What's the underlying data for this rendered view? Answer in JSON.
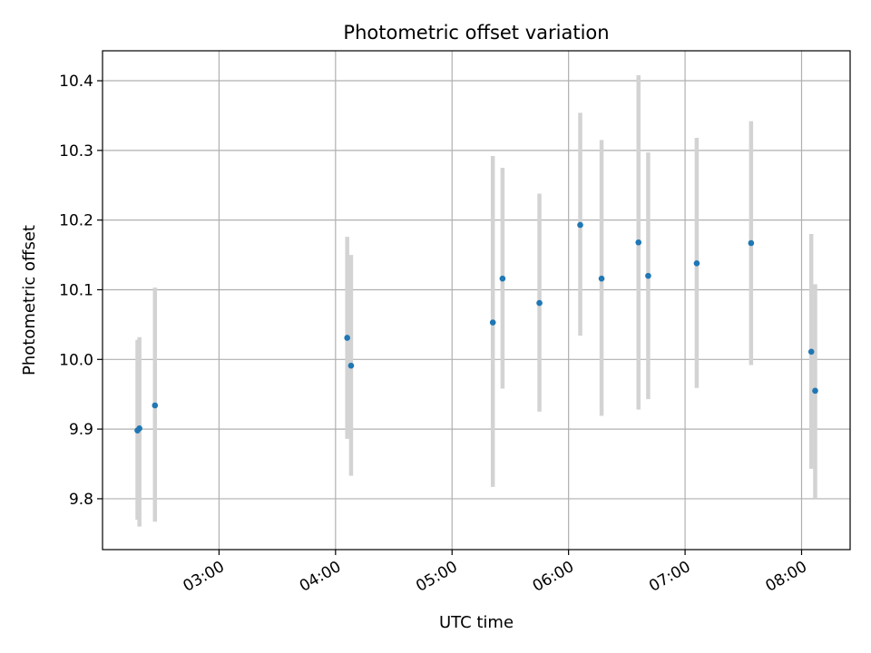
{
  "chart_data": {
    "type": "scatter",
    "title": "Photometric offset variation",
    "xlabel": "UTC time",
    "ylabel": "Photometric offset",
    "xlim": [
      "02:00",
      "08:25"
    ],
    "ylim": [
      9.727,
      10.443
    ],
    "grid": true,
    "error_bars": true,
    "marker_color": "#1f77b4",
    "error_bar_color": "#d3d3d3",
    "x_ticks": [
      "03:00",
      "04:00",
      "05:00",
      "06:00",
      "07:00",
      "08:00"
    ],
    "y_ticks": [
      "9.8",
      "9.9",
      "10.0",
      "10.1",
      "10.2",
      "10.3",
      "10.4"
    ],
    "points": [
      {
        "x": "02:18",
        "y": 9.898,
        "ylow": 9.77,
        "yhigh": 10.028
      },
      {
        "x": "02:19",
        "y": 9.901,
        "ylow": 9.76,
        "yhigh": 10.032
      },
      {
        "x": "02:27",
        "y": 9.934,
        "ylow": 9.767,
        "yhigh": 10.103
      },
      {
        "x": "04:06",
        "y": 10.031,
        "ylow": 9.886,
        "yhigh": 10.176
      },
      {
        "x": "04:08",
        "y": 9.991,
        "ylow": 9.833,
        "yhigh": 10.15
      },
      {
        "x": "05:21",
        "y": 10.053,
        "ylow": 9.817,
        "yhigh": 10.292
      },
      {
        "x": "05:26",
        "y": 10.116,
        "ylow": 9.958,
        "yhigh": 10.275
      },
      {
        "x": "05:45",
        "y": 10.081,
        "ylow": 9.925,
        "yhigh": 10.238
      },
      {
        "x": "06:06",
        "y": 10.193,
        "ylow": 10.034,
        "yhigh": 10.354
      },
      {
        "x": "06:17",
        "y": 10.116,
        "ylow": 9.919,
        "yhigh": 10.315
      },
      {
        "x": "06:36",
        "y": 10.168,
        "ylow": 9.928,
        "yhigh": 10.408
      },
      {
        "x": "06:41",
        "y": 10.12,
        "ylow": 9.943,
        "yhigh": 10.297
      },
      {
        "x": "07:06",
        "y": 10.138,
        "ylow": 9.959,
        "yhigh": 10.318
      },
      {
        "x": "07:34",
        "y": 10.167,
        "ylow": 9.992,
        "yhigh": 10.342
      },
      {
        "x": "08:05",
        "y": 10.011,
        "ylow": 9.843,
        "yhigh": 10.18
      },
      {
        "x": "08:07",
        "y": 9.955,
        "ylow": 9.8,
        "yhigh": 10.108
      }
    ]
  }
}
